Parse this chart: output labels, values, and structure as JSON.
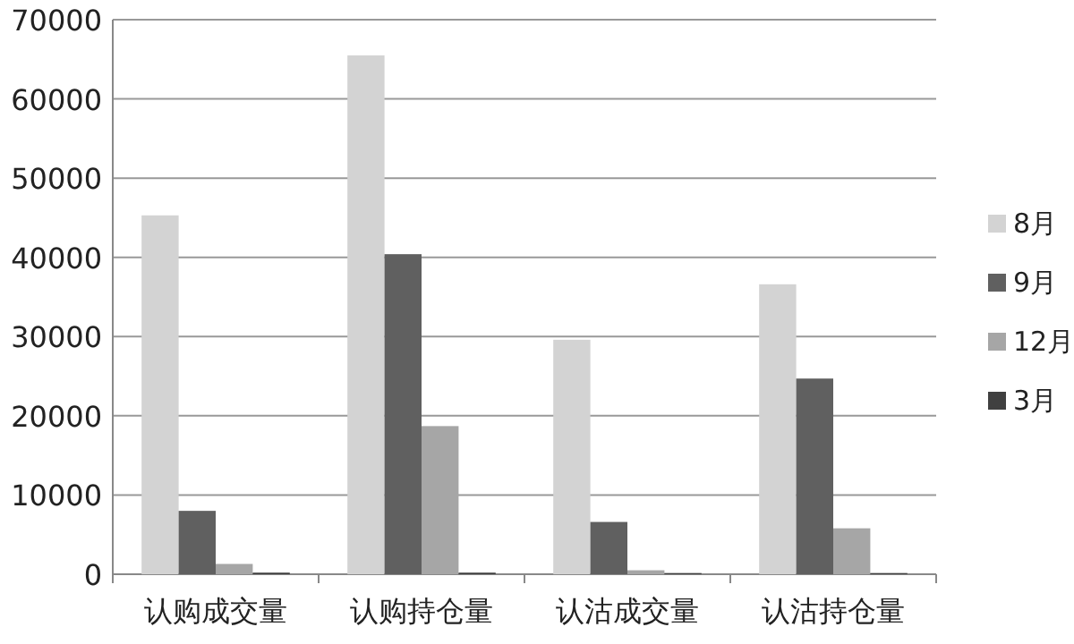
{
  "chart_data": {
    "type": "bar",
    "categories": [
      "认购成交量",
      "认购持仓量",
      "认沽成交量",
      "认沽持仓量"
    ],
    "series": [
      {
        "name": "8月",
        "color": "#d3d3d3",
        "values": [
          45300,
          65500,
          29600,
          36600
        ]
      },
      {
        "name": "9月",
        "color": "#606060",
        "values": [
          8000,
          40400,
          6600,
          24700
        ]
      },
      {
        "name": "12月",
        "color": "#a6a6a6",
        "values": [
          1300,
          18700,
          500,
          5800
        ]
      },
      {
        "name": "3月",
        "color": "#404040",
        "values": [
          200,
          200,
          150,
          150
        ]
      }
    ],
    "ylim": [
      0,
      70000
    ],
    "yticks": [
      0,
      10000,
      20000,
      30000,
      40000,
      50000,
      60000,
      70000
    ],
    "grid": "y",
    "legend": "right"
  }
}
